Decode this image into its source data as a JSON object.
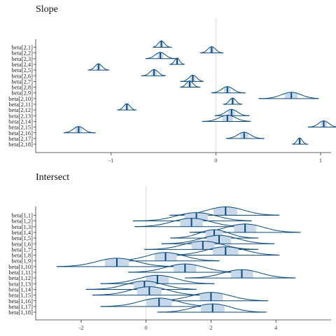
{
  "colors": {
    "dark": "#0b4a7a",
    "light": "#c6d8ea",
    "zero_line": "#dddddd",
    "axis": "#333333"
  },
  "chart_data": [
    {
      "type": "density",
      "title": "Slope",
      "xlim": [
        -1.72,
        1.1
      ],
      "xticks": [
        -1,
        0,
        1
      ],
      "xtick_labels": [
        "-1",
        "0",
        "1"
      ],
      "reference_line": 0,
      "labels": [
        "beta[2,1]",
        "beta[2,2]",
        "beta[2,3]",
        "beta[2,4]",
        "beta[2,5]",
        "beta[2,6]",
        "beta[2,7]",
        "beta[2,8]",
        "beta[2,9]",
        "beta[2,10]",
        "beta[2,11]",
        "beta[2,12]",
        "beta[2,13]",
        "beta[2,14]",
        "beta[2,15]",
        "beta[2,16]",
        "beta[2,17]",
        "beta[2,18]"
      ],
      "means": [
        -0.52,
        -0.04,
        -0.53,
        -0.37,
        -1.12,
        -0.59,
        -0.22,
        -0.25,
        0.11,
        0.72,
        0.16,
        -0.85,
        0.15,
        0.11,
        1.03,
        -1.31,
        0.27,
        0.8
      ],
      "lo": [
        -0.6,
        -0.15,
        -0.67,
        -0.44,
        -1.22,
        -0.71,
        -0.34,
        -0.34,
        -0.04,
        0.41,
        0.07,
        -0.94,
        -0.01,
        -0.13,
        0.88,
        -1.45,
        0.1,
        0.73
      ],
      "hi": [
        -0.42,
        0.07,
        -0.38,
        -0.3,
        -1.02,
        -0.48,
        -0.12,
        -0.15,
        0.28,
        0.98,
        0.25,
        -0.76,
        0.32,
        0.33,
        1.17,
        -1.15,
        0.46,
        0.88
      ]
    },
    {
      "type": "density",
      "title": "Intersect",
      "xlim": [
        -3.4,
        5.7
      ],
      "xticks": [
        -2,
        0,
        2,
        4
      ],
      "xtick_labels": [
        "-2",
        "0",
        "2",
        "4"
      ],
      "reference_line": 0,
      "labels": [
        "beta[1,1]",
        "beta[1,2]",
        "beta[1,3]",
        "beta[1,4]",
        "beta[1,5]",
        "beta[1,6]",
        "beta[1,7]",
        "beta[1,8]",
        "beta[1,9]",
        "beta[1,10]",
        "beta[1,11]",
        "beta[1,12]",
        "beta[1,13]",
        "beta[1,14]",
        "beta[1,15]",
        "beta[1,16]",
        "beta[1,17]",
        "beta[1,18]"
      ],
      "means": [
        2.45,
        1.55,
        1.4,
        3.05,
        2.1,
        2.25,
        1.75,
        2.45,
        0.6,
        -0.9,
        1.2,
        2.95,
        0.35,
        -0.05,
        0.1,
        2.0,
        0.4,
        2.05
      ],
      "lo": [
        0.73,
        -0.4,
        -0.35,
        1.35,
        0.75,
        0.48,
        -0.05,
        0.5,
        -1.15,
        -2.75,
        -0.55,
        1.2,
        -1.4,
        -1.85,
        -1.65,
        0.15,
        -1.4,
        0.35
      ],
      "hi": [
        4.1,
        3.25,
        3.15,
        4.75,
        3.45,
        3.95,
        3.45,
        4.1,
        2.25,
        0.95,
        2.95,
        4.6,
        2.1,
        1.55,
        1.8,
        3.75,
        2.15,
        3.7
      ]
    }
  ]
}
